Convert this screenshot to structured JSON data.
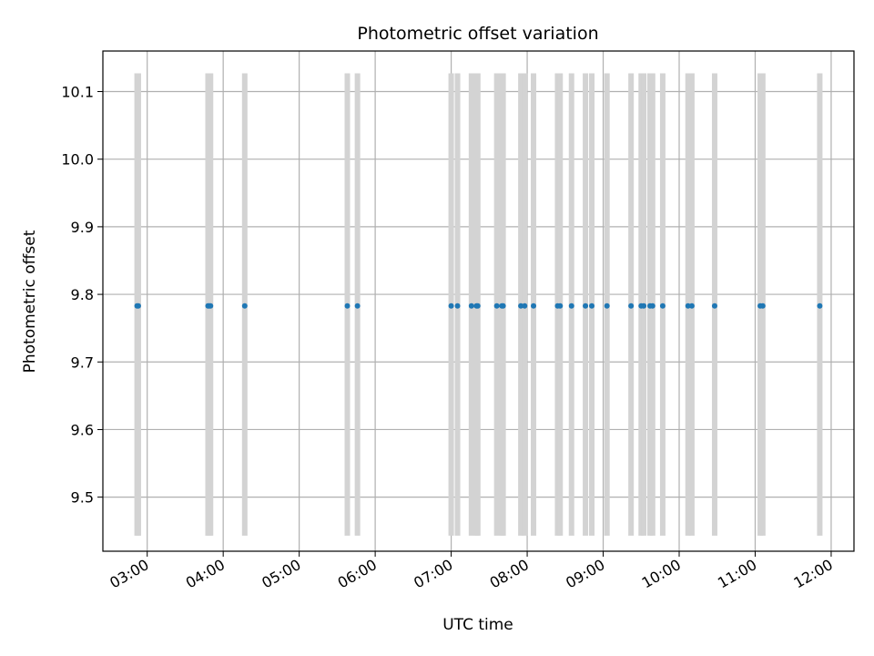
{
  "chart_data": {
    "type": "scatter",
    "title": "Photometric offset variation",
    "xlabel": "UTC time",
    "ylabel": "Photometric offset",
    "xlim": [
      "02:25",
      "12:18"
    ],
    "ylim": [
      9.42,
      10.16
    ],
    "grid": true,
    "x_ticks": [
      "03:00",
      "04:00",
      "05:00",
      "06:00",
      "07:00",
      "08:00",
      "09:00",
      "10:00",
      "11:00",
      "12:00"
    ],
    "y_ticks": [
      "9.5",
      "9.6",
      "9.7",
      "9.8",
      "9.9",
      "10.0",
      "10.1"
    ],
    "band_range": [
      9.443,
      10.127
    ],
    "colors": {
      "points": "#1f77b4",
      "bands": "#d3d3d3",
      "grid": "#b0b0b0"
    },
    "series": [
      {
        "points": [
          {
            "x": "02:52",
            "y": 9.783
          },
          {
            "x": "02:53",
            "y": 9.783
          },
          {
            "x": "03:48",
            "y": 9.783
          },
          {
            "x": "03:49",
            "y": 9.783
          },
          {
            "x": "03:50",
            "y": 9.783
          },
          {
            "x": "04:17",
            "y": 9.783
          },
          {
            "x": "05:38",
            "y": 9.783
          },
          {
            "x": "05:46",
            "y": 9.783
          },
          {
            "x": "07:00",
            "y": 9.783
          },
          {
            "x": "07:05",
            "y": 9.783
          },
          {
            "x": "07:16",
            "y": 9.783
          },
          {
            "x": "07:20",
            "y": 9.783
          },
          {
            "x": "07:21",
            "y": 9.783
          },
          {
            "x": "07:36",
            "y": 9.783
          },
          {
            "x": "07:40",
            "y": 9.783
          },
          {
            "x": "07:41",
            "y": 9.783
          },
          {
            "x": "07:55",
            "y": 9.783
          },
          {
            "x": "07:58",
            "y": 9.783
          },
          {
            "x": "08:05",
            "y": 9.783
          },
          {
            "x": "08:24",
            "y": 9.783
          },
          {
            "x": "08:26",
            "y": 9.783
          },
          {
            "x": "08:35",
            "y": 9.783
          },
          {
            "x": "08:46",
            "y": 9.783
          },
          {
            "x": "08:51",
            "y": 9.783
          },
          {
            "x": "09:03",
            "y": 9.783
          },
          {
            "x": "09:22",
            "y": 9.783
          },
          {
            "x": "09:30",
            "y": 9.783
          },
          {
            "x": "09:32",
            "y": 9.783
          },
          {
            "x": "09:37",
            "y": 9.783
          },
          {
            "x": "09:39",
            "y": 9.783
          },
          {
            "x": "09:47",
            "y": 9.783
          },
          {
            "x": "10:07",
            "y": 9.783
          },
          {
            "x": "10:10",
            "y": 9.783
          },
          {
            "x": "10:28",
            "y": 9.783
          },
          {
            "x": "11:04",
            "y": 9.783
          },
          {
            "x": "11:06",
            "y": 9.783
          },
          {
            "x": "11:51",
            "y": 9.783
          }
        ]
      }
    ]
  }
}
